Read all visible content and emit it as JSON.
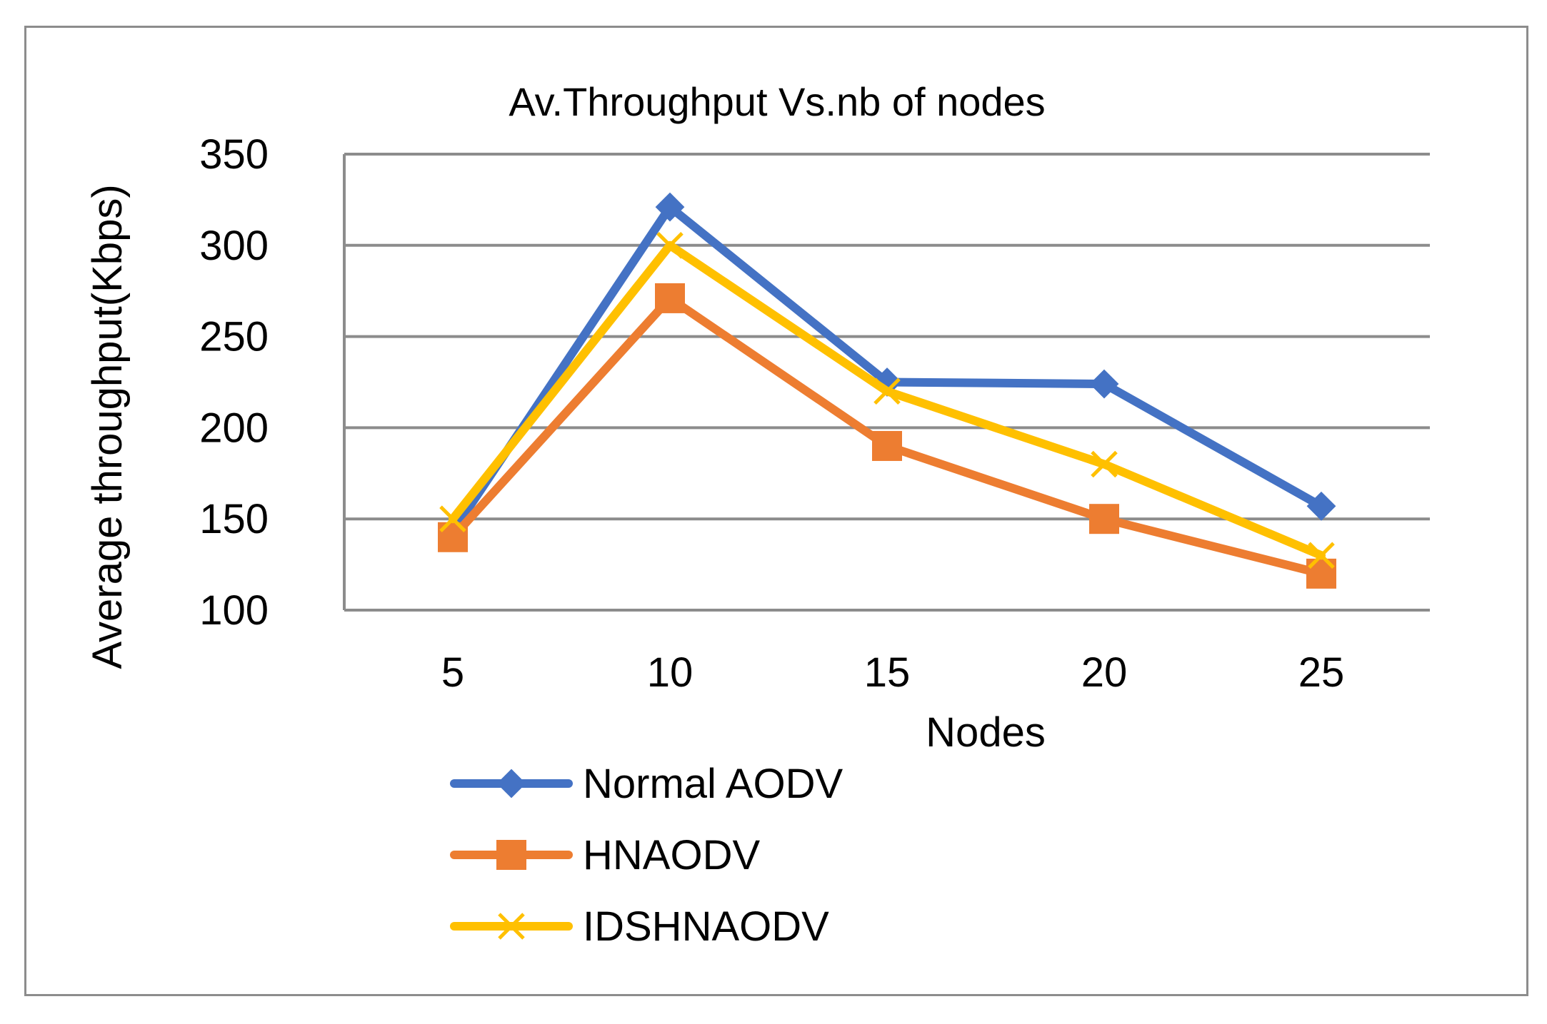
{
  "chart_data": {
    "type": "line",
    "title": "Av.Throughput Vs.nb of nodes",
    "xlabel": "Nodes",
    "ylabel": "Average throughput(Kbps)",
    "categories": [
      "5",
      "10",
      "15",
      "20",
      "25"
    ],
    "ylim": [
      100,
      350
    ],
    "yticks": [
      100,
      150,
      200,
      250,
      300,
      350
    ],
    "grid": true,
    "legend_position": "bottom-left",
    "series": [
      {
        "name": "Normal AODV",
        "marker": "diamond",
        "color": "#4472C4",
        "values": [
          143,
          321,
          225,
          224,
          157
        ]
      },
      {
        "name": "HNAODV",
        "marker": "square",
        "color": "#ED7D31",
        "values": [
          140,
          271,
          190,
          150,
          120
        ]
      },
      {
        "name": "IDSHNAODV",
        "marker": "x",
        "color": "#FFC000",
        "values": [
          150,
          300,
          220,
          180,
          130
        ]
      }
    ]
  }
}
